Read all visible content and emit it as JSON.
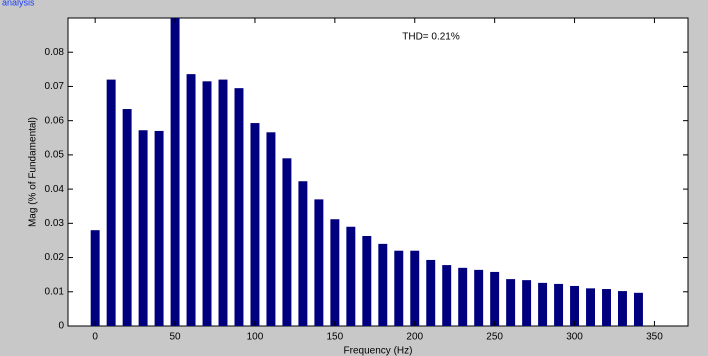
{
  "window_title": "analysis",
  "chart_data": {
    "type": "bar",
    "annotation": "THD= 0.21%",
    "xlabel": "Frequency (Hz)",
    "ylabel": "Mag (% of Fundamental)",
    "x": [
      0,
      10,
      20,
      30,
      40,
      50,
      60,
      70,
      80,
      90,
      100,
      110,
      120,
      130,
      140,
      150,
      160,
      170,
      180,
      190,
      200,
      210,
      220,
      230,
      240,
      250,
      260,
      270,
      280,
      290,
      300,
      310,
      320,
      330,
      340
    ],
    "values": [
      0.028,
      0.072,
      0.0634,
      0.0572,
      0.057,
      0.09,
      0.0736,
      0.0715,
      0.072,
      0.0695,
      0.0593,
      0.0566,
      0.049,
      0.0423,
      0.037,
      0.0312,
      0.029,
      0.0263,
      0.024,
      0.022,
      0.022,
      0.0193,
      0.0178,
      0.017,
      0.0164,
      0.0158,
      0.0137,
      0.0134,
      0.0126,
      0.0123,
      0.0117,
      0.011,
      0.0108,
      0.0102,
      0.0097
    ],
    "color": "#00007f",
    "xlim": [
      -17,
      371
    ],
    "ylim": [
      0,
      0.09
    ],
    "xticks": [
      0,
      50,
      100,
      150,
      200,
      250,
      300,
      350
    ],
    "yticks": [
      0,
      0.01,
      0.02,
      0.03,
      0.04,
      0.05,
      0.06,
      0.07,
      0.08
    ],
    "grid": false
  }
}
